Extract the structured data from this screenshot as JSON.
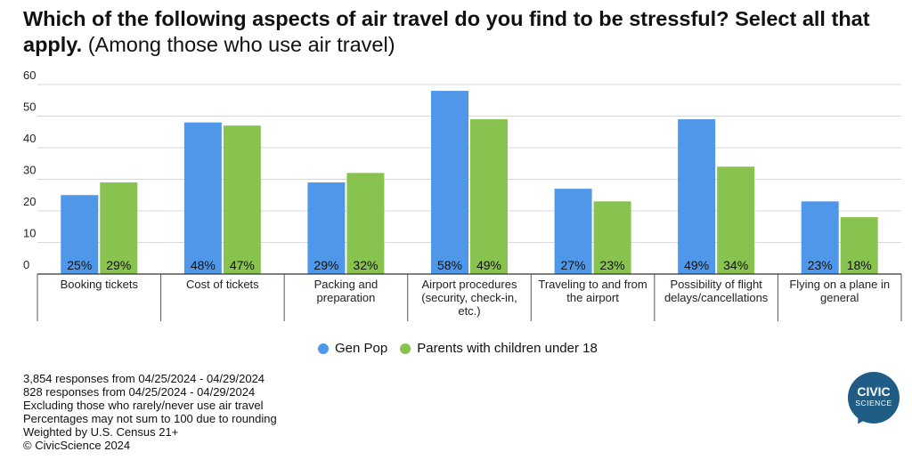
{
  "title": {
    "bold": "Which of the following aspects of air travel do you find to be stressful? Select all that apply.",
    "normal": " (Among those who use air travel)"
  },
  "chart_data": {
    "type": "bar",
    "categories": [
      "Booking tickets",
      "Cost of tickets",
      "Packing and preparation",
      "Airport procedures (security, check-in, etc.)",
      "Traveling to and from the airport",
      "Possibility of flight delays/cancellations",
      "Flying on a plane in general"
    ],
    "category_lines": [
      [
        "Booking tickets"
      ],
      [
        "Cost of tickets"
      ],
      [
        "Packing and",
        "preparation"
      ],
      [
        "Airport procedures",
        "(security, check-in,",
        "etc.)"
      ],
      [
        "Traveling to and from",
        "the airport"
      ],
      [
        "Possibility of flight",
        "delays/cancellations"
      ],
      [
        "Flying on a plane in",
        "general"
      ]
    ],
    "series": [
      {
        "name": "Gen Pop",
        "color": "#4f97e8",
        "values": [
          25,
          48,
          29,
          58,
          27,
          49,
          23
        ],
        "labels": [
          "25%",
          "48%",
          "29%",
          "58%",
          "27%",
          "49%",
          "23%"
        ]
      },
      {
        "name": "Parents with children under 18",
        "color": "#88c24f",
        "values": [
          29,
          47,
          32,
          49,
          23,
          34,
          18
        ],
        "labels": [
          "29%",
          "47%",
          "32%",
          "49%",
          "23%",
          "34%",
          "18%"
        ]
      }
    ],
    "ylim": [
      0,
      60
    ],
    "yticks": [
      0,
      10,
      20,
      30,
      40,
      50,
      60
    ],
    "grid": true,
    "legend": "bottom-center"
  },
  "notes": [
    "3,854 responses from 04/25/2024 - 04/29/2024",
    "828 responses from 04/25/2024 - 04/29/2024",
    "Excluding those who rarely/never use air travel",
    "Percentages may not sum to 100 due to rounding",
    "Weighted by U.S. Census 21+",
    "© CivicScience 2024"
  ],
  "logo": {
    "line1": "CIVIC",
    "line2": "SCIENCE"
  }
}
